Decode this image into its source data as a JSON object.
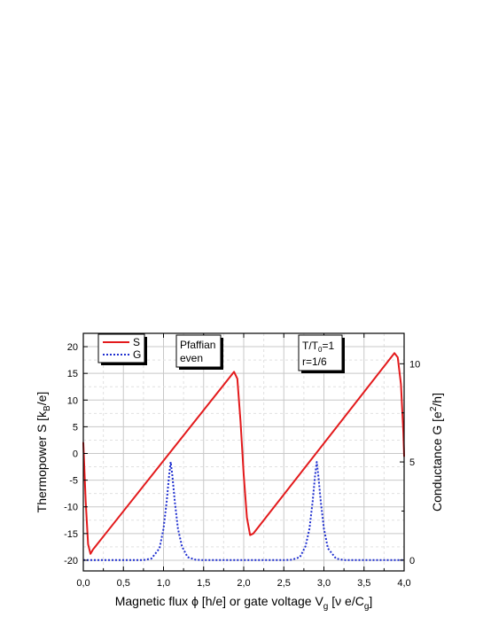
{
  "chart_data": {
    "type": "line",
    "x_axis": {
      "label": "Magnetic flux ϕ [h/e] or gate voltage V",
      "label_sub1": "g",
      "label_mid": " [ν e/C",
      "label_sub2": "g",
      "label_end": "]",
      "range": [
        0.0,
        4.0
      ],
      "ticks": [
        0.0,
        0.5,
        1.0,
        1.5,
        2.0,
        2.5,
        3.0,
        3.5,
        4.0
      ],
      "tick_labels": [
        "0,0",
        "0,5",
        "1,0",
        "1,5",
        "2,0",
        "2,5",
        "3,0",
        "3,5",
        "4,0"
      ]
    },
    "y_left": {
      "label": "Thermopower S [k",
      "label_sub": "B",
      "label_end": "/e]",
      "range": [
        -22.0,
        22.5
      ],
      "ticks": [
        -20,
        -15,
        -10,
        -5,
        0,
        5,
        10,
        15,
        20
      ],
      "tick_labels": [
        "-20",
        "-15",
        "-10",
        "-5",
        "0",
        "5",
        "10",
        "15",
        "20"
      ]
    },
    "y_right": {
      "label": "Conductance G [e",
      "label_sup": "2",
      "label_end": "/h]",
      "range": [
        -0.55,
        11.55
      ],
      "ticks": [
        0,
        5,
        10
      ],
      "tick_labels": [
        "0",
        "5",
        "10"
      ]
    },
    "grid": true,
    "legend": {
      "position": "top-left",
      "entries": [
        {
          "label": "S"
        },
        {
          "label": "G"
        }
      ]
    },
    "annotations": [
      {
        "lines": [
          "Pfaffian",
          "even"
        ]
      },
      {
        "line1_prefix": "T/T",
        "line1_sub": "0",
        "line1_suffix": "=1",
        "line2": "r=1/6"
      }
    ],
    "series": [
      {
        "name": "S",
        "axis": "left",
        "color": "#e31a1c",
        "style": "solid",
        "x": [
          0.0,
          0.03,
          0.06,
          0.09,
          0.12,
          1.88,
          1.92,
          1.96,
          2.0,
          2.04,
          2.08,
          2.12,
          3.88,
          3.92,
          3.96,
          3.99,
          4.0
        ],
        "y": [
          2.0,
          -9.0,
          -17.0,
          -18.8,
          -18.0,
          15.3,
          14.0,
          6.0,
          -4.0,
          -12.0,
          -15.3,
          -15.0,
          18.8,
          18.0,
          13.0,
          4.0,
          -0.5
        ]
      },
      {
        "name": "G",
        "axis": "right",
        "color": "#1f2fd0",
        "style": "dotted",
        "x": [
          0.0,
          0.75,
          0.85,
          0.95,
          1.0,
          1.04,
          1.07,
          1.09,
          1.11,
          1.14,
          1.18,
          1.23,
          1.3,
          1.4,
          1.5,
          2.5,
          2.6,
          2.7,
          2.77,
          2.82,
          2.86,
          2.89,
          2.91,
          2.93,
          2.96,
          3.0,
          3.05,
          3.15,
          3.25,
          4.0
        ],
        "y": [
          0.0,
          0.0,
          0.08,
          0.6,
          1.6,
          3.0,
          4.3,
          5.0,
          4.3,
          3.0,
          1.6,
          0.7,
          0.15,
          0.02,
          0.0,
          0.0,
          0.02,
          0.15,
          0.7,
          1.6,
          3.0,
          4.3,
          5.0,
          4.3,
          3.0,
          1.6,
          0.6,
          0.08,
          0.0,
          0.0
        ]
      }
    ]
  }
}
